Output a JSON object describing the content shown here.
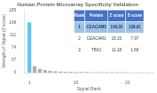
{
  "chart_data": {
    "type": "bar",
    "title": "Human Protein Microarray Specificity Validation",
    "xlabel": "Signal Rank",
    "ylabel": "Strength of Signal (Z score)",
    "x": [
      1,
      2,
      3,
      4,
      5,
      6,
      7,
      8,
      9,
      10,
      11,
      12,
      13,
      14,
      15,
      16,
      17,
      18,
      19,
      20,
      21,
      22,
      23,
      24,
      25
    ],
    "values": [
      148.35,
      19.15,
      11.18,
      8.0,
      5.5,
      4.2,
      3.5,
      2.9,
      2.5,
      2.2,
      2.0,
      1.8,
      1.6,
      1.5,
      1.4,
      1.3,
      1.2,
      1.1,
      1.0,
      0.9,
      0.85,
      0.8,
      0.75,
      0.7,
      0.65
    ],
    "colors": [
      "#5bc8f5",
      "#b0b0b0",
      "#b0b0b0",
      "#b0b0b0",
      "#b0b0b0",
      "#b0b0b0",
      "#b0b0b0",
      "#b0b0b0",
      "#b0b0b0",
      "#b0b0b0",
      "#b0b0b0",
      "#b0b0b0",
      "#b0b0b0",
      "#b0b0b0",
      "#b0b0b0",
      "#b0b0b0",
      "#b0b0b0",
      "#b0b0b0",
      "#b0b0b0",
      "#b0b0b0",
      "#b0b0b0",
      "#b0b0b0",
      "#b0b0b0",
      "#b0b0b0",
      "#b0b0b0"
    ],
    "xlim": [
      0,
      25
    ],
    "xticks": [
      1,
      10,
      20
    ],
    "ylim": [
      0,
      185
    ],
    "yticks": [
      0,
      37,
      74,
      111,
      148,
      185
    ],
    "grid": false,
    "table": {
      "headers": [
        "Rank",
        "Protein",
        "Z score",
        "S score"
      ],
      "rows": [
        [
          "1",
          "CEACAM5",
          "148.35",
          "138.91"
        ],
        [
          "2",
          "CEACAM1",
          "19.15",
          "7.97"
        ],
        [
          "3",
          "TBX1",
          "11.18",
          "1.69"
        ]
      ]
    }
  }
}
